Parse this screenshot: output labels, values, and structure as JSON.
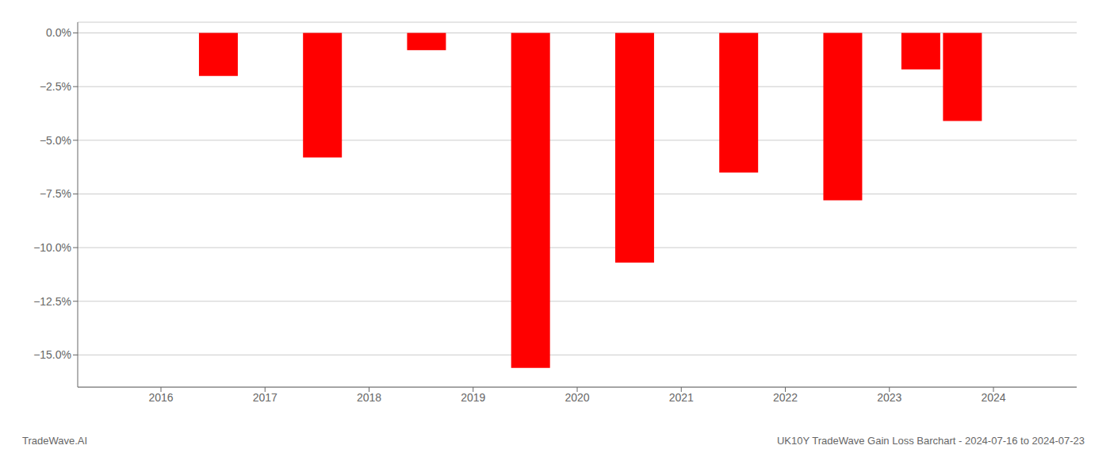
{
  "chart_data": {
    "type": "bar",
    "title": "UK10Y TradeWave Gain Loss Barchart - 2024-07-16 to 2024-07-23",
    "annotations": [
      "TradeWave.AI"
    ],
    "x": [
      2016.55,
      2017.55,
      2018.55,
      2019.55,
      2020.55,
      2021.55,
      2022.55,
      2023.3,
      2023.7
    ],
    "values": [
      -2.0,
      -5.8,
      -0.8,
      -15.6,
      -10.7,
      -6.5,
      -7.8,
      -1.7,
      -4.1
    ],
    "color": "#ff0000",
    "xlim": [
      2015.2,
      2024.8
    ],
    "xticks": [
      2016,
      2017,
      2018,
      2019,
      2020,
      2021,
      2022,
      2023,
      2024
    ],
    "ylim": [
      -16.5,
      0.5
    ],
    "yticks": [
      {
        "value": 0.0,
        "label": "0.0%"
      },
      {
        "value": -2.5,
        "label": "−2.5%"
      },
      {
        "value": -5.0,
        "label": "−5.0%"
      },
      {
        "value": -7.5,
        "label": "−7.5%"
      },
      {
        "value": -10.0,
        "label": "−10.0%"
      },
      {
        "value": -12.5,
        "label": "−12.5%"
      },
      {
        "value": -15.0,
        "label": "−15.0%"
      }
    ],
    "grid": true
  }
}
